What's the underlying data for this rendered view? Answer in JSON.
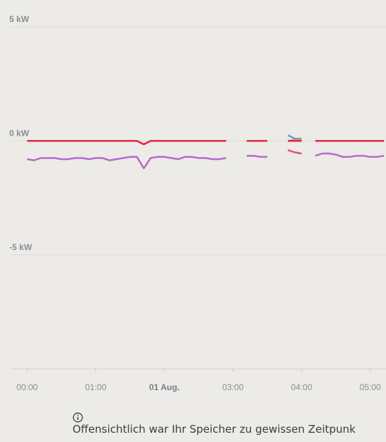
{
  "chart_data": {
    "type": "line",
    "x": [
      0.0,
      0.1,
      0.2,
      0.3,
      0.4,
      0.5,
      0.6,
      0.7,
      0.8,
      0.9,
      1.0,
      1.1,
      1.2,
      1.3,
      1.4,
      1.5,
      1.6,
      1.7,
      1.8,
      1.9,
      2.0,
      2.1,
      2.2,
      2.3,
      2.4,
      2.5,
      2.6,
      2.7,
      2.8,
      2.9,
      3.0,
      3.1,
      3.2,
      3.3,
      3.4,
      3.5,
      3.6,
      3.7,
      3.8,
      3.9,
      4.0,
      4.1,
      4.2,
      4.3,
      4.4,
      4.5,
      4.6,
      4.7,
      4.8,
      4.9,
      5.0,
      5.1,
      5.2
    ],
    "series": [
      {
        "color": "#b968cc",
        "values": [
          -0.8,
          -0.85,
          -0.75,
          -0.75,
          -0.75,
          -0.8,
          -0.8,
          -0.75,
          -0.75,
          -0.8,
          -0.75,
          -0.75,
          -0.85,
          -0.8,
          -0.75,
          -0.7,
          -0.7,
          -1.2,
          -0.75,
          -0.7,
          -0.7,
          -0.75,
          -0.8,
          -0.7,
          -0.7,
          -0.75,
          -0.75,
          -0.8,
          -0.8,
          -0.75,
          null,
          null,
          -0.65,
          -0.65,
          -0.7,
          -0.7,
          null,
          null,
          null,
          null,
          null,
          null,
          -0.65,
          -0.55,
          -0.55,
          -0.6,
          -0.7,
          -0.7,
          -0.65,
          -0.65,
          -0.7,
          -0.7,
          -0.65
        ]
      },
      {
        "color": "#5aa0d8",
        "values": [
          null,
          null,
          null,
          null,
          null,
          null,
          null,
          null,
          null,
          null,
          null,
          null,
          null,
          null,
          null,
          null,
          null,
          null,
          null,
          null,
          null,
          null,
          null,
          null,
          null,
          null,
          null,
          null,
          null,
          null,
          null,
          null,
          null,
          null,
          null,
          null,
          null,
          null,
          0.25,
          0.1,
          0.1,
          null,
          null,
          null,
          null,
          null,
          null,
          null,
          null,
          null,
          null,
          null,
          null
        ]
      },
      {
        "color": "#e59a55",
        "values": [
          null,
          null,
          null,
          null,
          null,
          null,
          null,
          null,
          null,
          null,
          null,
          null,
          null,
          null,
          null,
          null,
          null,
          null,
          null,
          null,
          null,
          null,
          null,
          null,
          null,
          null,
          null,
          null,
          null,
          null,
          null,
          null,
          null,
          null,
          null,
          null,
          null,
          null,
          0.0,
          0.05,
          0.05,
          null,
          null,
          null,
          null,
          null,
          null,
          null,
          null,
          null,
          null,
          null,
          null
        ]
      },
      {
        "color": "#e0508a",
        "values": [
          null,
          null,
          null,
          null,
          null,
          null,
          null,
          null,
          null,
          null,
          null,
          null,
          null,
          null,
          null,
          null,
          null,
          null,
          null,
          null,
          null,
          null,
          null,
          null,
          null,
          null,
          null,
          null,
          null,
          null,
          null,
          null,
          null,
          null,
          null,
          null,
          null,
          null,
          -0.4,
          -0.5,
          -0.55,
          null,
          null,
          null,
          null,
          null,
          null,
          null,
          null,
          null,
          null,
          null,
          null
        ]
      },
      {
        "color": "#e0273f",
        "values": [
          0,
          0,
          0,
          0,
          0,
          0,
          0,
          0,
          0,
          0,
          0,
          0,
          0,
          0,
          0,
          0,
          0,
          -0.15,
          0,
          0,
          0,
          0,
          0,
          0,
          0,
          0,
          0,
          0,
          0,
          0,
          null,
          null,
          0,
          0,
          0,
          0,
          null,
          null,
          0,
          0,
          0,
          null,
          0,
          0,
          0,
          0,
          0,
          0,
          0,
          0,
          0,
          0,
          0
        ]
      }
    ],
    "xlim": [
      -0.24,
      5.23
    ],
    "ylim": [
      -10,
      5
    ],
    "yticks": [
      {
        "value": 5,
        "label": "5 kW"
      },
      {
        "value": 0,
        "label": "0 kW"
      },
      {
        "value": -5,
        "label": "-5 kW"
      }
    ],
    "xticks": [
      {
        "value": 0,
        "label": "00:00"
      },
      {
        "value": 1,
        "label": "01:00"
      },
      {
        "value": 2,
        "label": "01 Aug.",
        "emphasis": true
      },
      {
        "value": 3,
        "label": "03:00"
      },
      {
        "value": 4,
        "label": "04:00"
      },
      {
        "value": 5,
        "label": "05:00"
      }
    ],
    "grid": true
  },
  "footer_note": "Offensichtlich war Ihr Speicher zu gewissen Zeitpunk"
}
